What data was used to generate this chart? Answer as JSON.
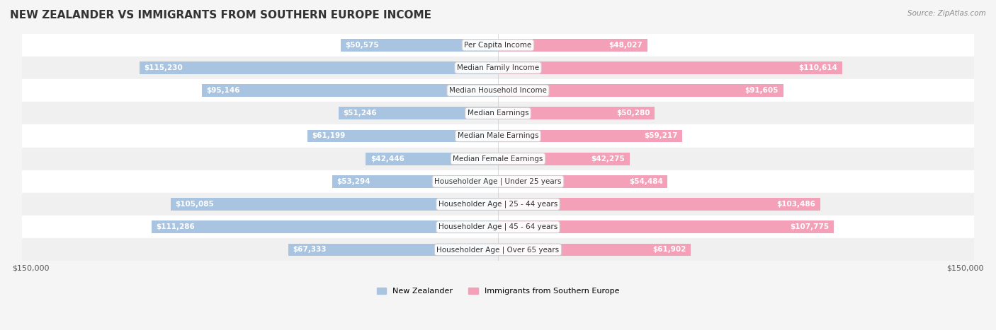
{
  "title": "NEW ZEALANDER VS IMMIGRANTS FROM SOUTHERN EUROPE INCOME",
  "source": "Source: ZipAtlas.com",
  "categories": [
    "Per Capita Income",
    "Median Family Income",
    "Median Household Income",
    "Median Earnings",
    "Median Male Earnings",
    "Median Female Earnings",
    "Householder Age | Under 25 years",
    "Householder Age | 25 - 44 years",
    "Householder Age | 45 - 64 years",
    "Householder Age | Over 65 years"
  ],
  "nz_values": [
    50575,
    115230,
    95146,
    51246,
    61199,
    42446,
    53294,
    105085,
    111286,
    67333
  ],
  "imm_values": [
    48027,
    110614,
    91605,
    50280,
    59217,
    42275,
    54484,
    103486,
    107775,
    61902
  ],
  "nz_labels": [
    "$50,575",
    "$115,230",
    "$95,146",
    "$51,246",
    "$61,199",
    "$42,446",
    "$53,294",
    "$105,085",
    "$111,286",
    "$67,333"
  ],
  "imm_labels": [
    "$48,027",
    "$110,614",
    "$91,605",
    "$50,280",
    "$59,217",
    "$42,275",
    "$54,484",
    "$103,486",
    "$107,775",
    "$61,902"
  ],
  "max_val": 150000,
  "nz_color": "#a8c4e0",
  "nz_color_dark": "#7bafd4",
  "imm_color": "#f4a0b8",
  "imm_color_dark": "#e8789a",
  "bg_color": "#f5f5f5",
  "row_bg": "#ffffff",
  "row_bg_alt": "#f0f0f0",
  "label_color_inside": "#ffffff",
  "label_color_outside": "#555555",
  "bar_height": 0.55,
  "legend_nz": "New Zealander",
  "legend_imm": "Immigrants from Southern Europe"
}
